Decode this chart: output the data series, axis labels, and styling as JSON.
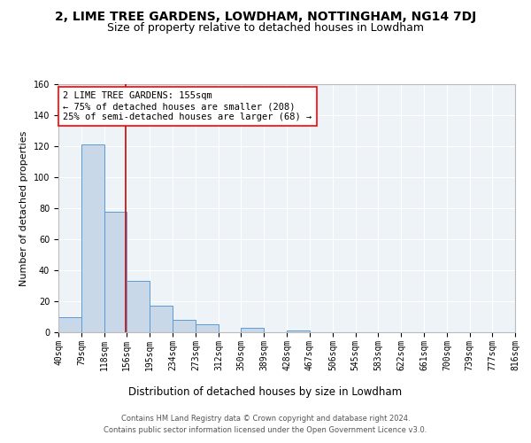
{
  "title": "2, LIME TREE GARDENS, LOWDHAM, NOTTINGHAM, NG14 7DJ",
  "subtitle": "Size of property relative to detached houses in Lowdham",
  "xlabel": "Distribution of detached houses by size in Lowdham",
  "ylabel": "Number of detached properties",
  "bin_edges": [
    40,
    79,
    118,
    156,
    195,
    234,
    273,
    312,
    350,
    389,
    428,
    467,
    506,
    545,
    583,
    622,
    661,
    700,
    739,
    777,
    816
  ],
  "bin_labels": [
    "40sqm",
    "79sqm",
    "118sqm",
    "156sqm",
    "195sqm",
    "234sqm",
    "273sqm",
    "312sqm",
    "350sqm",
    "389sqm",
    "428sqm",
    "467sqm",
    "506sqm",
    "545sqm",
    "583sqm",
    "622sqm",
    "661sqm",
    "700sqm",
    "739sqm",
    "777sqm",
    "816sqm"
  ],
  "counts": [
    10,
    121,
    78,
    33,
    17,
    8,
    5,
    0,
    3,
    0,
    1,
    0,
    0,
    0,
    0,
    0,
    0,
    0,
    0,
    0
  ],
  "bar_color": "#c8d8e8",
  "bar_edge_color": "#5b9bd5",
  "red_line_x": 155,
  "annotation_text": "2 LIME TREE GARDENS: 155sqm\n← 75% of detached houses are smaller (208)\n25% of semi-detached houses are larger (68) →",
  "annotation_box_color": "white",
  "annotation_box_edge_color": "red",
  "red_line_color": "#cc0000",
  "ylim": [
    0,
    160
  ],
  "yticks": [
    0,
    20,
    40,
    60,
    80,
    100,
    120,
    140,
    160
  ],
  "footer_line1": "Contains HM Land Registry data © Crown copyright and database right 2024.",
  "footer_line2": "Contains public sector information licensed under the Open Government Licence v3.0.",
  "background_color": "#eef3f8",
  "fig_background": "white",
  "grid_color": "white",
  "title_fontsize": 10,
  "subtitle_fontsize": 9,
  "xlabel_fontsize": 8.5,
  "ylabel_fontsize": 8,
  "tick_fontsize": 7,
  "annotation_fontsize": 7.5
}
